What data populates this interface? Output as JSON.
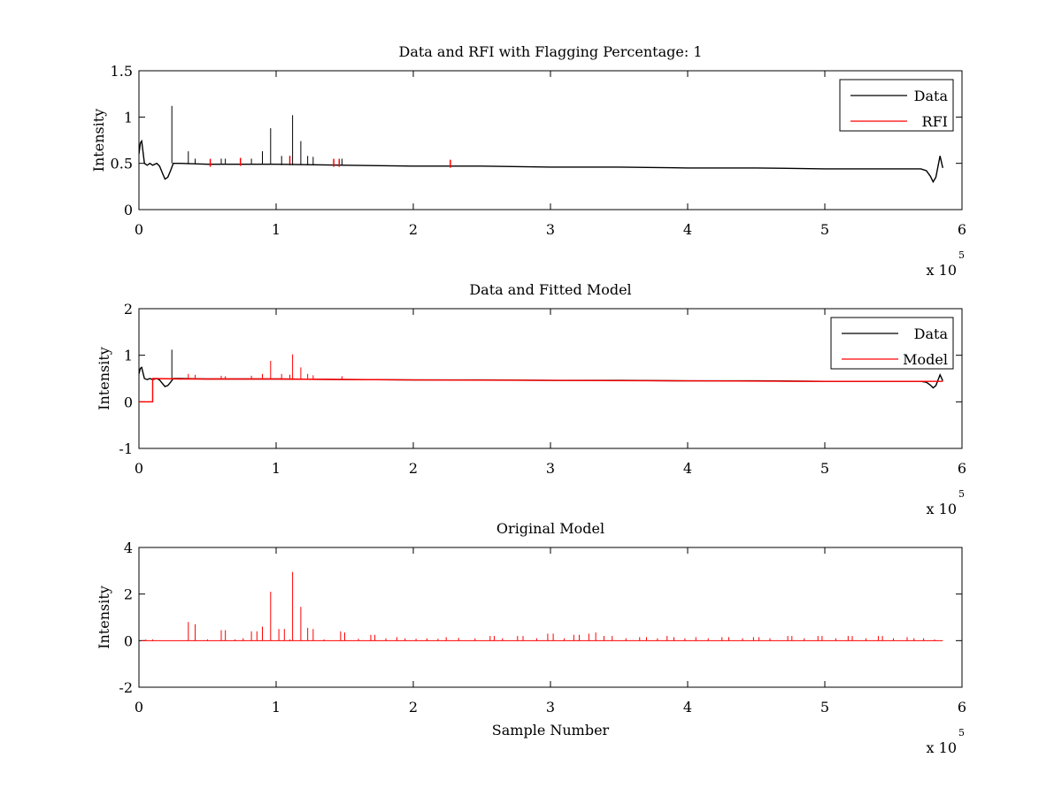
{
  "chart_data": [
    {
      "type": "line",
      "title": "Data and RFI with Flagging Percentage: 1",
      "xlabel": "",
      "ylabel": "Intensity",
      "xlim": [
        0,
        6
      ],
      "ylim": [
        0,
        1.5
      ],
      "x_ticks": [
        "0",
        "1",
        "2",
        "3",
        "4",
        "5",
        "6"
      ],
      "y_ticks": [
        "0",
        "0.5",
        "1",
        "1.5"
      ],
      "x_multiplier": "x 10",
      "x_multiplier_exp": "5",
      "legend": {
        "position": "top-right",
        "entries": [
          "Data",
          "RFI"
        ]
      },
      "colors": {
        "Data": "#000000",
        "RFI": "#ff0000"
      },
      "series": [
        {
          "name": "Data",
          "x": [
            0,
            0.01,
            0.02,
            0.04,
            0.06,
            0.08,
            0.1,
            0.13,
            0.15,
            0.17,
            0.19,
            0.21,
            0.23,
            0.25,
            0.3,
            0.5,
            1.0,
            1.5,
            2.0,
            2.5,
            3.0,
            3.5,
            4.0,
            4.5,
            5.0,
            5.5,
            5.7,
            5.74,
            5.77,
            5.79,
            5.81,
            5.84,
            5.86
          ],
          "y": [
            0.6,
            0.72,
            0.74,
            0.5,
            0.48,
            0.5,
            0.48,
            0.5,
            0.47,
            0.4,
            0.33,
            0.35,
            0.42,
            0.5,
            0.5,
            0.49,
            0.49,
            0.48,
            0.47,
            0.47,
            0.46,
            0.46,
            0.45,
            0.45,
            0.44,
            0.44,
            0.44,
            0.42,
            0.36,
            0.3,
            0.35,
            0.58,
            0.45
          ],
          "spikes": [
            {
              "x": 0.24,
              "y": 1.12
            },
            {
              "x": 0.36,
              "y": 0.63
            },
            {
              "x": 0.41,
              "y": 0.55
            },
            {
              "x": 0.6,
              "y": 0.55
            },
            {
              "x": 0.63,
              "y": 0.55
            },
            {
              "x": 0.82,
              "y": 0.55
            },
            {
              "x": 0.9,
              "y": 0.63
            },
            {
              "x": 0.96,
              "y": 0.88
            },
            {
              "x": 1.04,
              "y": 0.58
            },
            {
              "x": 1.1,
              "y": 0.58
            },
            {
              "x": 1.12,
              "y": 1.02
            },
            {
              "x": 1.18,
              "y": 0.74
            },
            {
              "x": 1.23,
              "y": 0.58
            },
            {
              "x": 1.27,
              "y": 0.57
            },
            {
              "x": 1.48,
              "y": 0.55
            }
          ]
        },
        {
          "name": "RFI",
          "x": [
            0.52,
            0.74,
            1.1,
            1.42,
            1.46,
            2.27
          ],
          "y": [
            0.52,
            0.53,
            0.55,
            0.52,
            0.52,
            0.51
          ]
        }
      ]
    },
    {
      "type": "line",
      "title": "Data and Fitted Model",
      "xlabel": "",
      "ylabel": "Intensity",
      "xlim": [
        0,
        6
      ],
      "ylim": [
        -1,
        2
      ],
      "x_ticks": [
        "0",
        "1",
        "2",
        "3",
        "4",
        "5",
        "6"
      ],
      "y_ticks": [
        "-1",
        "0",
        "1",
        "2"
      ],
      "x_multiplier": "x 10",
      "x_multiplier_exp": "5",
      "legend": {
        "position": "top-right",
        "entries": [
          "Data",
          "Model"
        ]
      },
      "colors": {
        "Data": "#000000",
        "Model": "#ff0000"
      },
      "series": [
        {
          "name": "Data",
          "x": [
            0,
            0.01,
            0.02,
            0.04,
            0.06,
            0.08,
            0.1,
            0.13,
            0.15,
            0.17,
            0.19,
            0.21,
            0.23,
            0.25,
            0.3,
            0.5,
            1.0,
            1.5,
            2.0,
            2.5,
            3.0,
            3.5,
            4.0,
            4.5,
            5.0,
            5.5,
            5.7,
            5.74,
            5.77,
            5.79,
            5.81,
            5.84,
            5.86
          ],
          "y": [
            0.6,
            0.72,
            0.74,
            0.5,
            0.48,
            0.5,
            0.48,
            0.5,
            0.47,
            0.4,
            0.33,
            0.35,
            0.42,
            0.5,
            0.5,
            0.49,
            0.49,
            0.48,
            0.47,
            0.47,
            0.46,
            0.46,
            0.45,
            0.45,
            0.44,
            0.44,
            0.44,
            0.42,
            0.36,
            0.3,
            0.35,
            0.58,
            0.45
          ],
          "spikes": [
            {
              "x": 0.24,
              "y": 1.12
            }
          ]
        },
        {
          "name": "Model",
          "x": [
            0,
            0.1,
            0.1,
            0.11,
            0.3,
            1.0,
            2.0,
            3.0,
            4.0,
            5.0,
            5.86
          ],
          "y": [
            0,
            0,
            0.5,
            0.5,
            0.49,
            0.49,
            0.47,
            0.46,
            0.45,
            0.44,
            0.44
          ],
          "spikes": [
            {
              "x": 0.36,
              "y": 0.6
            },
            {
              "x": 0.41,
              "y": 0.58
            },
            {
              "x": 0.6,
              "y": 0.56
            },
            {
              "x": 0.63,
              "y": 0.55
            },
            {
              "x": 0.82,
              "y": 0.56
            },
            {
              "x": 0.9,
              "y": 0.6
            },
            {
              "x": 0.96,
              "y": 0.88
            },
            {
              "x": 1.04,
              "y": 0.6
            },
            {
              "x": 1.1,
              "y": 0.58
            },
            {
              "x": 1.12,
              "y": 1.02
            },
            {
              "x": 1.18,
              "y": 0.74
            },
            {
              "x": 1.23,
              "y": 0.6
            },
            {
              "x": 1.27,
              "y": 0.57
            },
            {
              "x": 1.48,
              "y": 0.55
            }
          ]
        }
      ]
    },
    {
      "type": "line",
      "title": "Original Model",
      "xlabel": "Sample Number",
      "ylabel": "Intensity",
      "xlim": [
        0,
        6
      ],
      "ylim": [
        -2,
        4
      ],
      "x_ticks": [
        "0",
        "1",
        "2",
        "3",
        "4",
        "5",
        "6"
      ],
      "y_ticks": [
        "-2",
        "0",
        "2",
        "4"
      ],
      "x_multiplier": "x 10",
      "x_multiplier_exp": "5",
      "colors": {
        "Model": "#ff0000"
      },
      "series": [
        {
          "baseline": 0,
          "x_range": [
            0.02,
            5.86
          ],
          "spikes": [
            {
              "x": 0.05,
              "y": 0.05
            },
            {
              "x": 0.1,
              "y": 0.05
            },
            {
              "x": 0.36,
              "y": 0.8
            },
            {
              "x": 0.41,
              "y": 0.7
            },
            {
              "x": 0.5,
              "y": 0.05
            },
            {
              "x": 0.6,
              "y": 0.45
            },
            {
              "x": 0.63,
              "y": 0.45
            },
            {
              "x": 0.7,
              "y": 0.05
            },
            {
              "x": 0.76,
              "y": 0.1
            },
            {
              "x": 0.82,
              "y": 0.4
            },
            {
              "x": 0.86,
              "y": 0.4
            },
            {
              "x": 0.9,
              "y": 0.6
            },
            {
              "x": 0.96,
              "y": 2.1
            },
            {
              "x": 1.02,
              "y": 0.5
            },
            {
              "x": 1.06,
              "y": 0.5
            },
            {
              "x": 1.1,
              "y": 0.05
            },
            {
              "x": 1.12,
              "y": 2.95
            },
            {
              "x": 1.18,
              "y": 1.45
            },
            {
              "x": 1.23,
              "y": 0.55
            },
            {
              "x": 1.27,
              "y": 0.5
            },
            {
              "x": 1.35,
              "y": 0.05
            },
            {
              "x": 1.47,
              "y": 0.4
            },
            {
              "x": 1.5,
              "y": 0.35
            },
            {
              "x": 1.6,
              "y": 0.08
            },
            {
              "x": 1.69,
              "y": 0.25
            },
            {
              "x": 1.72,
              "y": 0.25
            },
            {
              "x": 1.8,
              "y": 0.1
            },
            {
              "x": 1.88,
              "y": 0.15
            },
            {
              "x": 1.94,
              "y": 0.1
            },
            {
              "x": 2.02,
              "y": 0.08
            },
            {
              "x": 2.1,
              "y": 0.1
            },
            {
              "x": 2.18,
              "y": 0.08
            },
            {
              "x": 2.24,
              "y": 0.15
            },
            {
              "x": 2.33,
              "y": 0.12
            },
            {
              "x": 2.45,
              "y": 0.1
            },
            {
              "x": 2.56,
              "y": 0.2
            },
            {
              "x": 2.59,
              "y": 0.2
            },
            {
              "x": 2.65,
              "y": 0.1
            },
            {
              "x": 2.76,
              "y": 0.2
            },
            {
              "x": 2.8,
              "y": 0.2
            },
            {
              "x": 2.9,
              "y": 0.1
            },
            {
              "x": 2.98,
              "y": 0.3
            },
            {
              "x": 3.02,
              "y": 0.3
            },
            {
              "x": 3.1,
              "y": 0.1
            },
            {
              "x": 3.17,
              "y": 0.25
            },
            {
              "x": 3.21,
              "y": 0.25
            },
            {
              "x": 3.28,
              "y": 0.3
            },
            {
              "x": 3.33,
              "y": 0.35
            },
            {
              "x": 3.39,
              "y": 0.2
            },
            {
              "x": 3.45,
              "y": 0.2
            },
            {
              "x": 3.55,
              "y": 0.1
            },
            {
              "x": 3.65,
              "y": 0.15
            },
            {
              "x": 3.7,
              "y": 0.15
            },
            {
              "x": 3.78,
              "y": 0.1
            },
            {
              "x": 3.85,
              "y": 0.2
            },
            {
              "x": 3.9,
              "y": 0.15
            },
            {
              "x": 3.98,
              "y": 0.1
            },
            {
              "x": 4.06,
              "y": 0.15
            },
            {
              "x": 4.15,
              "y": 0.1
            },
            {
              "x": 4.25,
              "y": 0.15
            },
            {
              "x": 4.3,
              "y": 0.15
            },
            {
              "x": 4.4,
              "y": 0.1
            },
            {
              "x": 4.48,
              "y": 0.15
            },
            {
              "x": 4.52,
              "y": 0.15
            },
            {
              "x": 4.6,
              "y": 0.1
            },
            {
              "x": 4.73,
              "y": 0.2
            },
            {
              "x": 4.76,
              "y": 0.2
            },
            {
              "x": 4.85,
              "y": 0.1
            },
            {
              "x": 4.95,
              "y": 0.2
            },
            {
              "x": 4.98,
              "y": 0.2
            },
            {
              "x": 5.08,
              "y": 0.1
            },
            {
              "x": 5.17,
              "y": 0.2
            },
            {
              "x": 5.2,
              "y": 0.2
            },
            {
              "x": 5.3,
              "y": 0.1
            },
            {
              "x": 5.39,
              "y": 0.2
            },
            {
              "x": 5.42,
              "y": 0.2
            },
            {
              "x": 5.5,
              "y": 0.1
            },
            {
              "x": 5.6,
              "y": 0.15
            },
            {
              "x": 5.65,
              "y": 0.1
            },
            {
              "x": 5.72,
              "y": 0.1
            },
            {
              "x": 5.8,
              "y": 0.05
            }
          ]
        }
      ]
    }
  ]
}
